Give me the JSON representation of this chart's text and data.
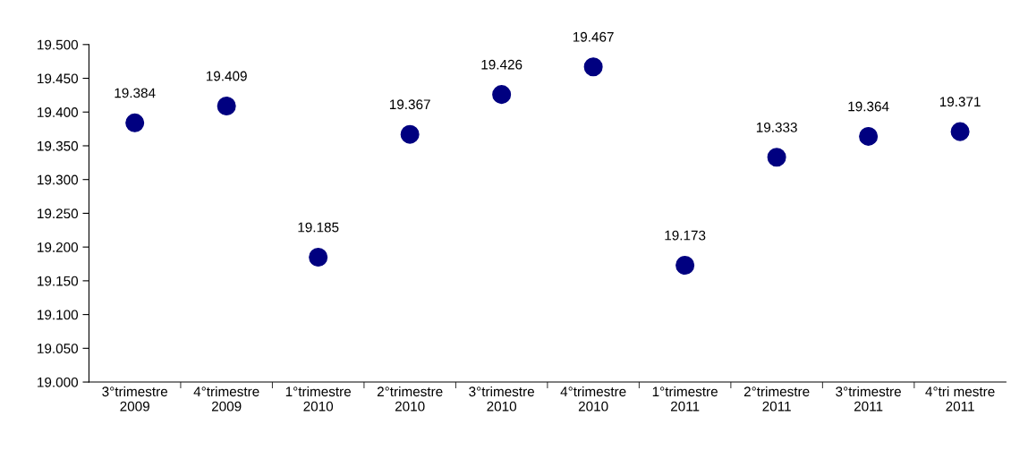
{
  "chart_data": {
    "type": "scatter",
    "categories": [
      "3°trimestre\n2009",
      "4°trimestre\n2009",
      "1°trimestre\n2010",
      "2°trimestre\n2010",
      "3°trimestre\n2010",
      "4°trimestre\n2010",
      "1°trimestre\n2011",
      "2°trimestre\n2011",
      "3°trimestre\n2011",
      "4°tri mestre\n2011"
    ],
    "values": [
      19384,
      19409,
      19185,
      19367,
      19426,
      19467,
      19173,
      19333,
      19364,
      19371
    ],
    "value_labels": [
      "19.384",
      "19.409",
      "19.185",
      "19.367",
      "19.426",
      "19.467",
      "19.173",
      "19.333",
      "19.364",
      "19.371"
    ],
    "color": "#000080",
    "marker": "circle",
    "ylim": [
      19000,
      19500
    ],
    "yticks": [
      {
        "value": 19000,
        "label": "19.000"
      },
      {
        "value": 19050,
        "label": "19.050"
      },
      {
        "value": 19100,
        "label": "19.100"
      },
      {
        "value": 19150,
        "label": "19.150"
      },
      {
        "value": 19200,
        "label": "19.200"
      },
      {
        "value": 19250,
        "label": "19.250"
      },
      {
        "value": 19300,
        "label": "19.300"
      },
      {
        "value": 19350,
        "label": "19.350"
      },
      {
        "value": 19400,
        "label": "19.400"
      },
      {
        "value": 19450,
        "label": "19.450"
      },
      {
        "value": 19500,
        "label": "19.500"
      }
    ],
    "grid": false,
    "legend": false
  }
}
